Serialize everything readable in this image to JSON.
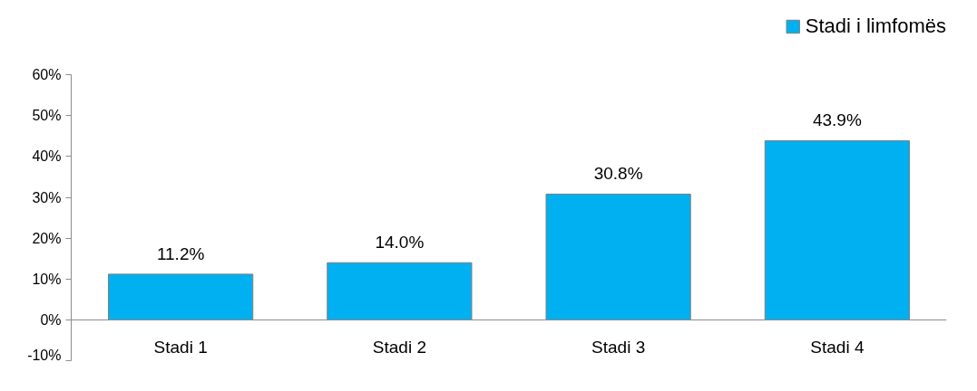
{
  "chart_data": {
    "type": "bar",
    "categories": [
      "Stadi 1",
      "Stadi 2",
      "Stadi 3",
      "Stadi 4"
    ],
    "series": [
      {
        "name": "Stadi i limfomës",
        "color": "#00b0f0",
        "values": [
          11.2,
          14.0,
          30.8,
          43.9
        ],
        "value_labels": [
          "11.2%",
          "14.0%",
          "30.8%",
          "43.9%"
        ]
      }
    ],
    "ylim": [
      -10,
      60
    ],
    "yticks": [
      {
        "value": -10,
        "label": "-10%"
      },
      {
        "value": 0,
        "label": "0%"
      },
      {
        "value": 10,
        "label": "10%"
      },
      {
        "value": 20,
        "label": "20%"
      },
      {
        "value": 30,
        "label": "30%"
      },
      {
        "value": 40,
        "label": "40%"
      },
      {
        "value": 50,
        "label": "50%"
      },
      {
        "value": 60,
        "label": "60%"
      }
    ],
    "grid": false,
    "legend": "top right"
  }
}
